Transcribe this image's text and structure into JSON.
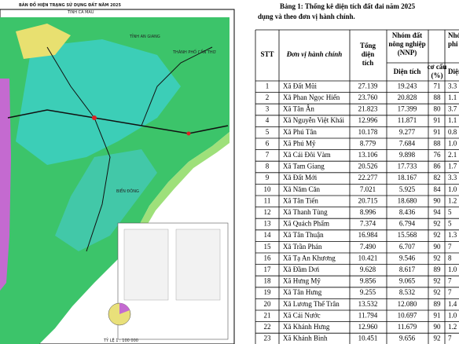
{
  "map": {
    "title": "BẢN ĐỒ HIỆN TRẠNG SỬ DỤNG ĐẤT NĂM 2025",
    "subtitle": "TỈNH CÀ MAU",
    "labels": [
      "TỈNH AN GIANG",
      "THÀNH PHỐ CẦN THƠ",
      "BIỂN ĐÔNG"
    ],
    "scale": "TỶ LỆ 1 : 100 000"
  },
  "table": {
    "title": "Bảng 1: Thống kê diện tích đất đai năm 2025",
    "title_line2": "dụng và theo đơn vị hành chính.",
    "headers": {
      "stt": "STT",
      "unit": "Đơn vị hành chính",
      "total": [
        "Tổng",
        "diện",
        "tích"
      ],
      "nnp": [
        "Nhóm đất",
        "nông nghiệp",
        "(NNP)"
      ],
      "nnp_area": "Diện tích",
      "nnp_share": [
        "cơ cấu",
        "(%)"
      ],
      "pnn": [
        "Nhó",
        "phi nô"
      ],
      "pnn_area": "Diện t"
    },
    "rows": [
      [
        "1",
        "Xã Đất Mũi",
        "27.139",
        "19.243",
        "71",
        "3.3"
      ],
      [
        "2",
        "Xã Phan Ngọc Hiển",
        "23.760",
        "20.828",
        "88",
        "1.1"
      ],
      [
        "3",
        "Xã Tân Ân",
        "21.823",
        "17.399",
        "80",
        "3.7"
      ],
      [
        "4",
        "Xã Nguyễn Việt Khái",
        "12.996",
        "11.871",
        "91",
        "1.1"
      ],
      [
        "5",
        "Xã Phú Tân",
        "10.178",
        "9.277",
        "91",
        "0.8"
      ],
      [
        "6",
        "Xã Phú Mỹ",
        "8.779",
        "7.684",
        "88",
        "1.0"
      ],
      [
        "7",
        "Xã Cái Đôi Vàm",
        "13.106",
        "9.898",
        "76",
        "2.1"
      ],
      [
        "8",
        "Xã Tam Giang",
        "20.526",
        "17.733",
        "86",
        "1.7"
      ],
      [
        "9",
        "Xã Đất Mới",
        "22.277",
        "18.167",
        "82",
        "3.3"
      ],
      [
        "10",
        "Xã Năm Căn",
        "7.021",
        "5.925",
        "84",
        "1.0"
      ],
      [
        "11",
        "Xã Tân Tiến",
        "20.715",
        "18.680",
        "90",
        "1.2"
      ],
      [
        "12",
        "Xã Thanh Tùng",
        "8.996",
        "8.436",
        "94",
        "5"
      ],
      [
        "13",
        "Xã Quách Phẩm",
        "7.374",
        "6.794",
        "92",
        "5"
      ],
      [
        "14",
        "Xã Tân Thuận",
        "16.984",
        "15.568",
        "92",
        "1.3"
      ],
      [
        "15",
        "Xã Trần Phán",
        "7.490",
        "6.707",
        "90",
        "7"
      ],
      [
        "16",
        "Xã Tạ An Khương",
        "10.421",
        "9.546",
        "92",
        "8"
      ],
      [
        "17",
        "Xã Đầm Dơi",
        "9.628",
        "8.617",
        "89",
        "1.0"
      ],
      [
        "18",
        "Xã Hưng Mỹ",
        "9.856",
        "9.065",
        "92",
        "7"
      ],
      [
        "19",
        "Xã Tân Hưng",
        "9.255",
        "8.532",
        "92",
        "7"
      ],
      [
        "20",
        "Xã Lương Thế Trân",
        "13.532",
        "12.080",
        "89",
        "1.4"
      ],
      [
        "21",
        "Xã Cái Nước",
        "11.794",
        "10.697",
        "91",
        "1.0"
      ],
      [
        "22",
        "Xã Khánh Hưng",
        "12.960",
        "11.679",
        "90",
        "1.2"
      ],
      [
        "23",
        "Xã Khánh Bình",
        "10.451",
        "9.656",
        "92",
        "7"
      ]
    ]
  }
}
